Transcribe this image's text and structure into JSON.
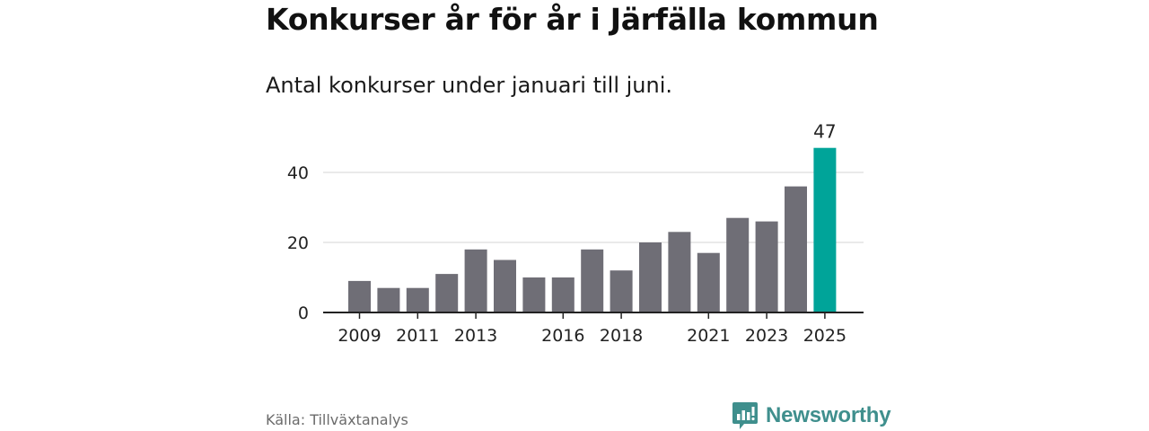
{
  "header": {
    "title": "Konkurser år för år i Järfälla kommun",
    "subtitle": "Antal konkurser under januari till juni."
  },
  "footer": {
    "source": "Källa: Tillväxtanalys",
    "brand": "Newsworthy"
  },
  "colors": {
    "bar": "#6f6e76",
    "highlight": "#00a499",
    "grid": "#d4d4d4",
    "axis": "#222222",
    "brand": "#3f8f8d"
  },
  "icons": {
    "brand_logo": "newsworthy-logo-icon"
  },
  "chart_data": {
    "type": "bar",
    "title": "Konkurser år för år i Järfälla kommun",
    "subtitle": "Antal konkurser under januari till juni.",
    "xlabel": "",
    "ylabel": "",
    "categories": [
      2009,
      2010,
      2011,
      2012,
      2013,
      2014,
      2015,
      2016,
      2017,
      2018,
      2019,
      2020,
      2021,
      2022,
      2023,
      2024,
      2025
    ],
    "values": [
      9,
      7,
      7,
      11,
      18,
      15,
      10,
      10,
      18,
      12,
      20,
      23,
      17,
      27,
      26,
      36,
      47
    ],
    "xticks": [
      2009,
      2011,
      2013,
      2016,
      2018,
      2021,
      2023,
      2025
    ],
    "yticks": [
      0,
      20,
      40
    ],
    "ylim": [
      0,
      50
    ],
    "grid": true,
    "highlight_index": 16,
    "data_labels": [
      {
        "index": 16,
        "text": "47"
      }
    ],
    "legend": "none"
  }
}
